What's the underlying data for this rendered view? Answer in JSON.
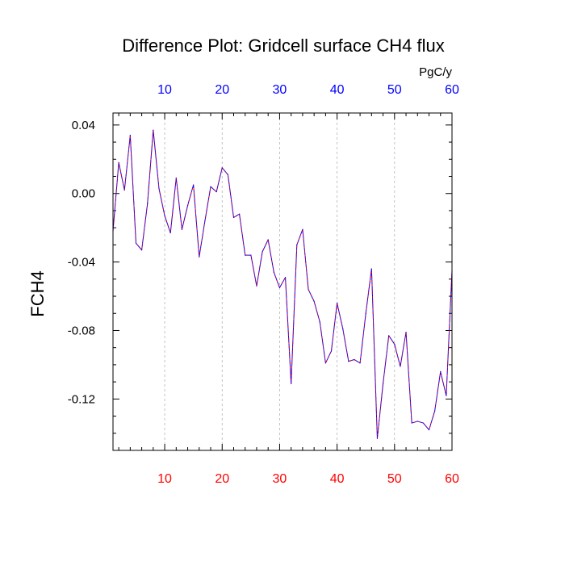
{
  "chart_data": {
    "type": "line",
    "title": "Difference Plot: Gridcell surface CH4 flux",
    "units": "PgC/y",
    "ylabel": "FCH4",
    "xlabel": "",
    "xlim": [
      1,
      60
    ],
    "ylim": [
      -0.15,
      0.047
    ],
    "x_ticks": [
      10,
      20,
      30,
      40,
      50,
      60
    ],
    "x_tick_labels": [
      "10",
      "20",
      "30",
      "40",
      "50",
      "60"
    ],
    "y_ticks": [
      0.04,
      0.0,
      -0.04,
      -0.08,
      -0.12
    ],
    "y_tick_labels": [
      "0.04",
      "0.00",
      "-0.04",
      "-0.08",
      "-0.12"
    ],
    "x_minor_step": 2,
    "y_minor_step": 0.01,
    "vertical_grid": true,
    "grid_style": "dashed",
    "colors": {
      "bottom_tick_labels": "#ff0000",
      "top_tick_labels": "#0000ff",
      "series_line": "#0000ff",
      "series_dash": "#ff0000"
    },
    "series": [
      {
        "values": [
          [
            1,
            -0.022
          ],
          [
            2,
            0.018
          ],
          [
            3,
            0.002
          ],
          [
            4,
            0.034
          ],
          [
            5,
            -0.029
          ],
          [
            6,
            -0.033
          ],
          [
            7,
            -0.006
          ],
          [
            8,
            0.037
          ],
          [
            9,
            0.003
          ],
          [
            10,
            -0.013
          ],
          [
            11,
            -0.023
          ],
          [
            12,
            0.009
          ],
          [
            13,
            -0.021
          ],
          [
            14,
            -0.007
          ],
          [
            15,
            0.005
          ],
          [
            16,
            -0.037
          ],
          [
            17,
            -0.016
          ],
          [
            18,
            0.004
          ],
          [
            19,
            0.001
          ],
          [
            20,
            0.015
          ],
          [
            21,
            0.011
          ],
          [
            22,
            -0.014
          ],
          [
            23,
            -0.012
          ],
          [
            24,
            -0.036
          ],
          [
            25,
            -0.036
          ],
          [
            26,
            -0.054
          ],
          [
            27,
            -0.034
          ],
          [
            28,
            -0.027
          ],
          [
            29,
            -0.046
          ],
          [
            30,
            -0.055
          ],
          [
            31,
            -0.049
          ],
          [
            32,
            -0.111
          ],
          [
            33,
            -0.03
          ],
          [
            34,
            -0.021
          ],
          [
            35,
            -0.056
          ],
          [
            36,
            -0.063
          ],
          [
            37,
            -0.075
          ],
          [
            38,
            -0.099
          ],
          [
            39,
            -0.092
          ],
          [
            40,
            -0.064
          ],
          [
            41,
            -0.079
          ],
          [
            42,
            -0.098
          ],
          [
            43,
            -0.097
          ],
          [
            44,
            -0.099
          ],
          [
            45,
            -0.07
          ],
          [
            46,
            -0.044
          ],
          [
            47,
            -0.143
          ],
          [
            48,
            -0.111
          ],
          [
            49,
            -0.083
          ],
          [
            50,
            -0.088
          ],
          [
            51,
            -0.101
          ],
          [
            52,
            -0.081
          ],
          [
            53,
            -0.134
          ],
          [
            54,
            -0.133
          ],
          [
            55,
            -0.134
          ],
          [
            56,
            -0.138
          ],
          [
            57,
            -0.127
          ],
          [
            58,
            -0.104
          ],
          [
            59,
            -0.118
          ],
          [
            60,
            -0.045
          ]
        ]
      }
    ]
  }
}
